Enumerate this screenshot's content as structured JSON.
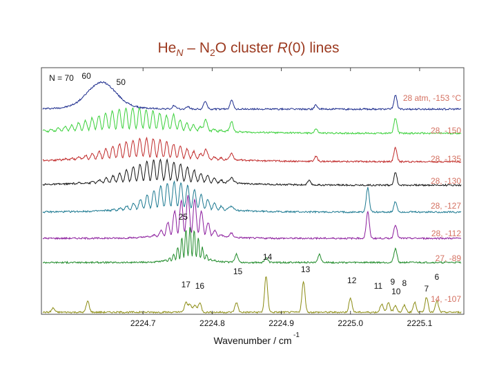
{
  "title": {
    "prefix": "He",
    "sub_n": "N",
    "mid": " – N",
    "sub_2": "2",
    "after": "O  cluster  ",
    "italic": "R",
    "suffix": "(0) lines"
  },
  "chart_data": {
    "type": "line",
    "title": "HeN – N2O cluster R(0) lines",
    "xlabel": "Wavenumber / cm",
    "xlabel_superscript": "-1",
    "xlim": [
      2224.555,
      2225.16
    ],
    "x_ticks": [
      2224.7,
      2224.8,
      2224.9,
      2225.0,
      2225.1
    ],
    "x_tick_labels": [
      "2224.7",
      "2224.8",
      "2224.9",
      "2225.0",
      "2225.1"
    ],
    "grid": false,
    "description_note": "stacked spectra, offset vertically; top = 28 atm, -153 °C, bottom = 14, -107",
    "series": [
      {
        "name": "28 atm, -153 °C",
        "color": "#1a2a8c",
        "band_center": 2224.64,
        "band_width": 0.02,
        "band_height": 35,
        "osc": 0,
        "peaks": [
          [
            2224.745,
            5
          ],
          [
            2224.765,
            4
          ],
          [
            2224.79,
            12
          ],
          [
            2224.828,
            14
          ],
          [
            2224.95,
            6
          ],
          [
            2225.065,
            20
          ]
        ]
      },
      {
        "name": "28, -150",
        "color": "#38d038",
        "band_center": 2224.685,
        "band_width": 0.055,
        "band_height": 33,
        "osc": 0.0098,
        "peaks": [
          [
            2224.745,
            6
          ],
          [
            2224.79,
            14
          ],
          [
            2224.828,
            15
          ],
          [
            2224.95,
            6
          ],
          [
            2225.065,
            22
          ]
        ]
      },
      {
        "name": "28, -135",
        "color": "#c02828",
        "band_center": 2224.705,
        "band_width": 0.05,
        "band_height": 30,
        "osc": 0.0098,
        "peaks": [
          [
            2224.79,
            12
          ],
          [
            2224.828,
            10
          ],
          [
            2224.95,
            7
          ],
          [
            2225.065,
            20
          ]
        ]
      },
      {
        "name": "28, -130",
        "color": "#111111",
        "band_center": 2224.725,
        "band_width": 0.045,
        "band_height": 33,
        "osc": 0.0098,
        "peaks": [
          [
            2224.828,
            8
          ],
          [
            2224.94,
            6
          ],
          [
            2225.065,
            18
          ]
        ]
      },
      {
        "name": "28, -127",
        "color": "#1a7890",
        "band_center": 2224.745,
        "band_width": 0.035,
        "band_height": 40,
        "osc": 0.0098,
        "peaks": [
          [
            2224.828,
            6
          ],
          [
            2225.025,
            35
          ],
          [
            2225.065,
            15
          ]
        ]
      },
      {
        "name": "28, -112",
        "color": "#8a1a9c",
        "band_center": 2224.765,
        "band_width": 0.02,
        "band_height": 58,
        "osc": 0.0098,
        "peaks": [
          [
            2224.828,
            6
          ],
          [
            2225.025,
            38
          ],
          [
            2225.065,
            20
          ]
        ]
      },
      {
        "name": "27, -89",
        "color": "#1e8a28",
        "band_center": 2224.768,
        "band_width": 0.013,
        "band_height": 48,
        "osc": 0.006,
        "peaks": [
          [
            2224.835,
            12
          ],
          [
            2224.878,
            7
          ],
          [
            2224.955,
            12
          ],
          [
            2225.065,
            20
          ]
        ]
      },
      {
        "name": "14, -107",
        "color": "#8a8a10",
        "band_center": 0,
        "band_width": 0,
        "band_height": 0,
        "osc": 0,
        "peaks": [
          [
            2224.57,
            6
          ],
          [
            2224.62,
            16
          ],
          [
            2224.762,
            14
          ],
          [
            2224.768,
            12
          ],
          [
            2224.775,
            10
          ],
          [
            2224.782,
            14
          ],
          [
            2224.835,
            14
          ],
          [
            2224.878,
            52
          ],
          [
            2224.932,
            44
          ],
          [
            2225.0,
            20
          ],
          [
            2225.045,
            12
          ],
          [
            2225.055,
            14
          ],
          [
            2225.065,
            10
          ],
          [
            2225.078,
            10
          ],
          [
            2225.093,
            14
          ],
          [
            2225.11,
            22
          ],
          [
            2225.125,
            16
          ]
        ]
      }
    ],
    "series_labels": [
      "28 atm, -153 °C",
      "28, -150",
      "28, -135",
      "28, -130",
      "28, -127",
      "28, -112",
      "27, -89",
      "14, -107"
    ],
    "annotations": [
      {
        "text": "N = 70",
        "x": 2224.582,
        "series": 0
      },
      {
        "text": "60",
        "x": 2224.618,
        "series": 0
      },
      {
        "text": "50",
        "x": 2224.668,
        "series": 0
      },
      {
        "text": "25",
        "x": 2224.758,
        "series": 5
      },
      {
        "text": "14",
        "x": 2224.88,
        "series": 6
      },
      {
        "text": "15",
        "x": 2224.837,
        "series": 7
      },
      {
        "text": "13",
        "x": 2224.935,
        "series": 7
      },
      {
        "text": "17",
        "x": 2224.762,
        "series": 7
      },
      {
        "text": "16",
        "x": 2224.782,
        "series": 7
      },
      {
        "text": "12",
        "x": 2225.002,
        "series": 7
      },
      {
        "text": "11",
        "x": 2225.04,
        "series": 7
      },
      {
        "text": "9",
        "x": 2225.061,
        "series": 7
      },
      {
        "text": "10",
        "x": 2225.066,
        "series": 7
      },
      {
        "text": "8",
        "x": 2225.078,
        "series": 7
      },
      {
        "text": "7",
        "x": 2225.11,
        "series": 7
      },
      {
        "text": "6",
        "x": 2225.125,
        "series": 7
      }
    ]
  }
}
